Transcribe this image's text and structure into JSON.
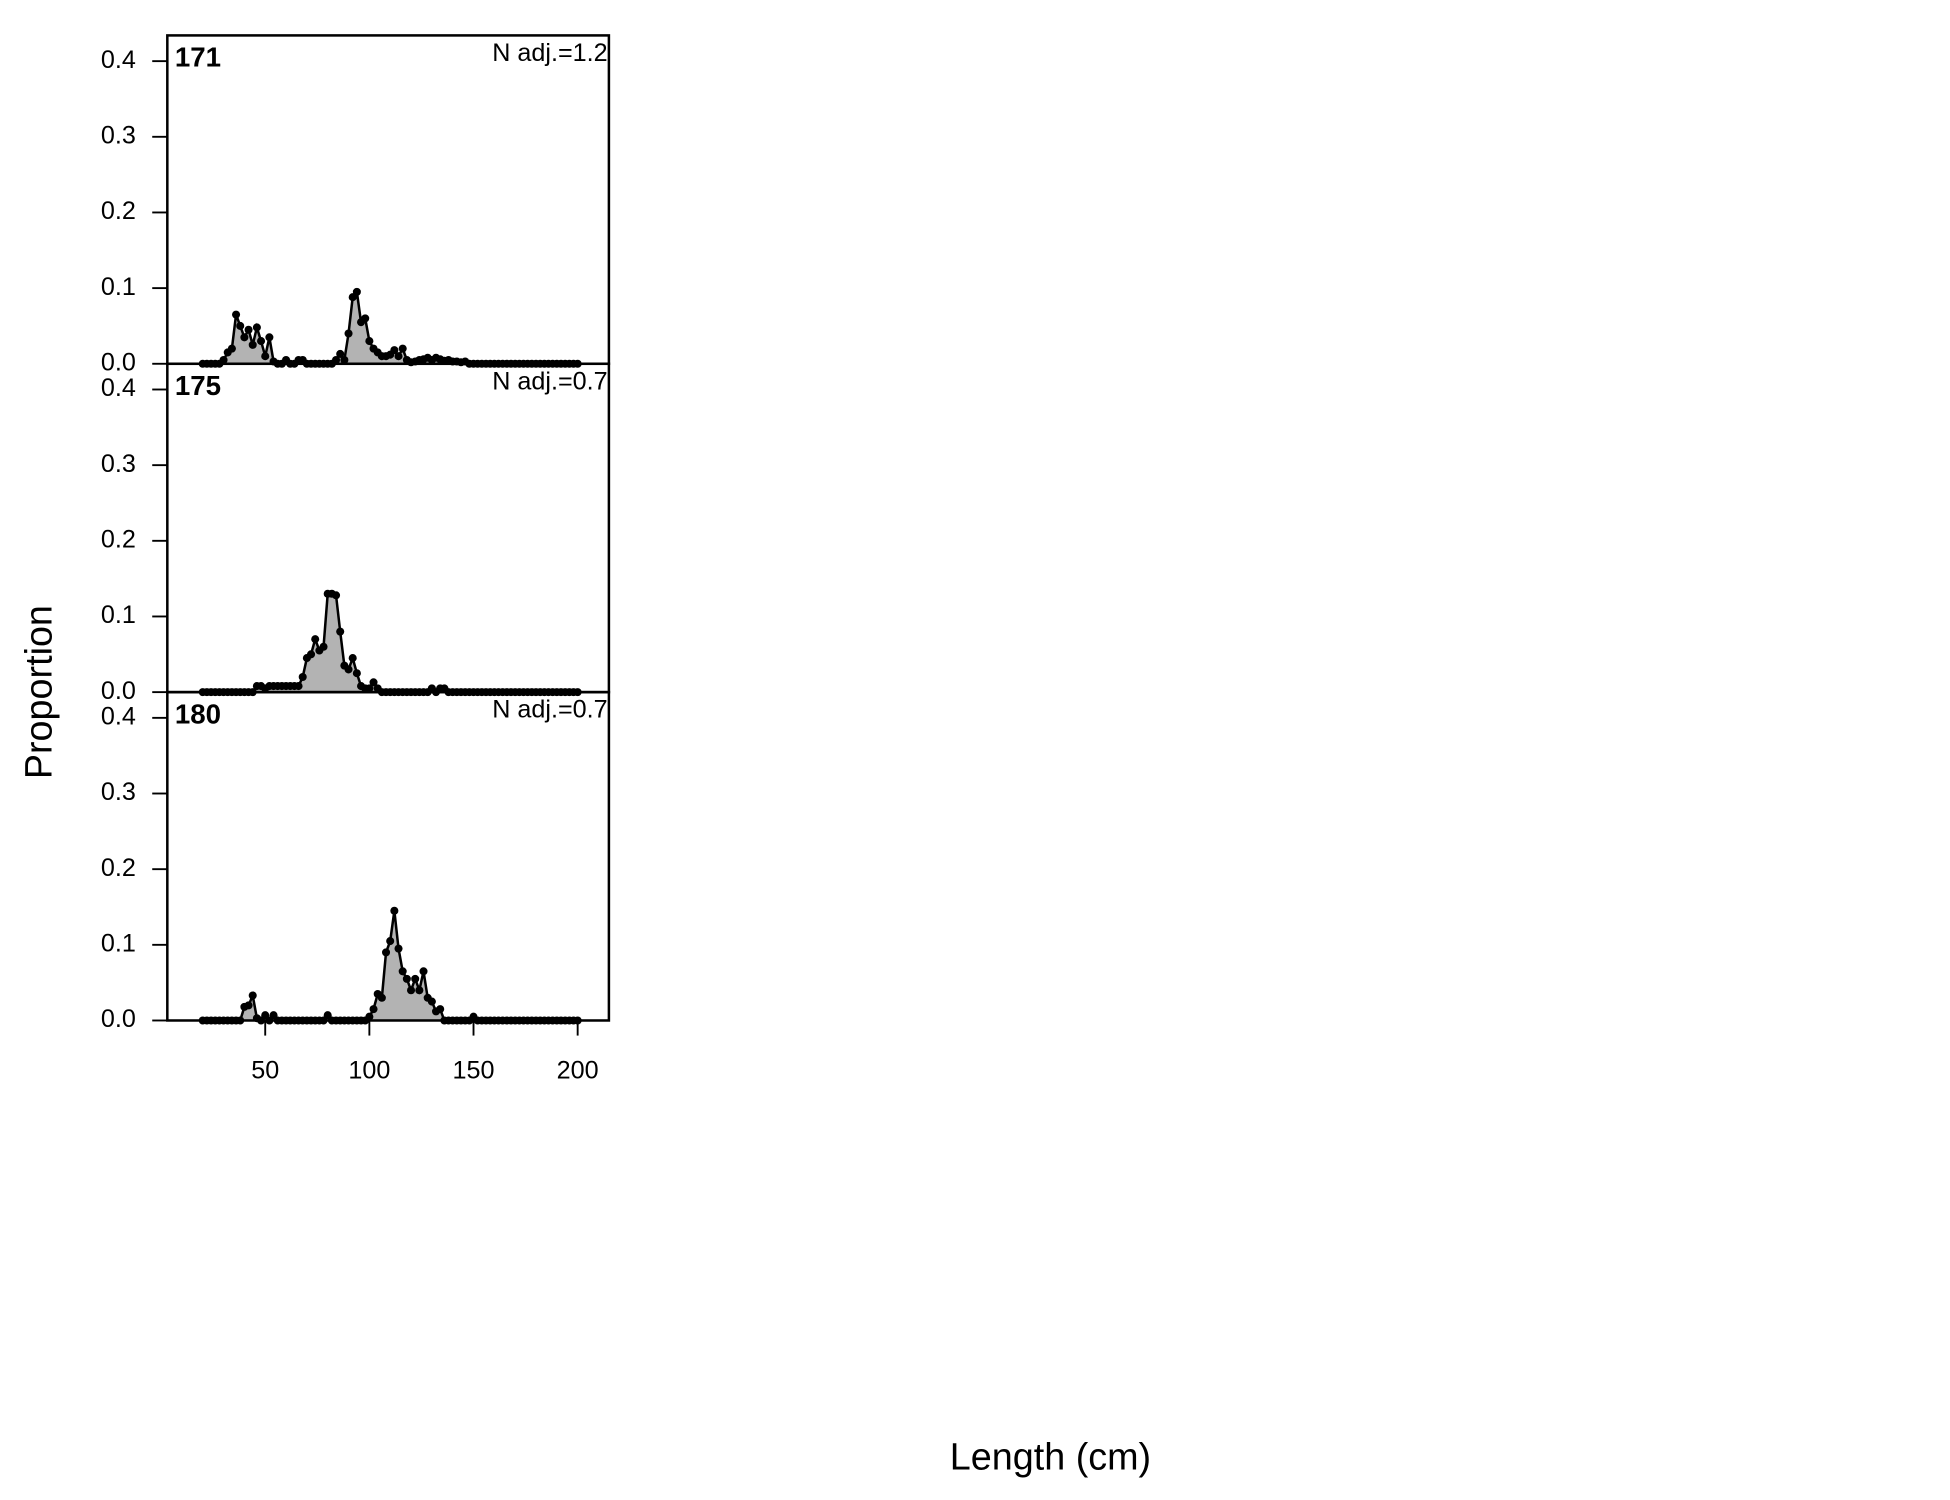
{
  "chart_data": [
    {
      "type": "area",
      "title": "171",
      "annotation": "N adj.=1.2",
      "color": "#b3b3b3",
      "x": [
        20,
        22,
        24,
        26,
        28,
        30,
        32,
        34,
        36,
        38,
        40,
        42,
        44,
        46,
        48,
        50,
        52,
        54,
        56,
        58,
        60,
        62,
        64,
        66,
        68,
        70,
        72,
        74,
        76,
        78,
        80,
        82,
        84,
        86,
        88,
        90,
        92,
        94,
        96,
        98,
        100,
        102,
        104,
        106,
        108,
        110,
        112,
        114,
        116,
        118,
        120,
        122,
        124,
        126,
        128,
        130,
        132,
        134,
        136,
        138,
        140,
        142,
        144,
        146,
        148,
        150,
        152,
        154,
        156,
        158,
        160,
        162,
        164,
        166,
        168,
        170,
        172,
        174,
        176,
        178,
        180,
        182,
        184,
        186,
        188,
        190,
        192,
        194,
        196,
        198,
        200
      ],
      "values": [
        0,
        0,
        0,
        0,
        0,
        0.005,
        0.015,
        0.02,
        0.065,
        0.05,
        0.035,
        0.045,
        0.025,
        0.048,
        0.03,
        0.01,
        0.035,
        0.003,
        0,
        0,
        0.005,
        0,
        0,
        0.005,
        0.005,
        0,
        0,
        0,
        0,
        0,
        0,
        0,
        0.005,
        0.013,
        0.005,
        0.04,
        0.088,
        0.095,
        0.055,
        0.06,
        0.03,
        0.02,
        0.015,
        0.01,
        0.01,
        0.012,
        0.018,
        0.01,
        0.02,
        0.005,
        0.002,
        0.003,
        0.005,
        0.006,
        0.008,
        0.005,
        0.008,
        0.006,
        0.004,
        0.005,
        0.003,
        0.003,
        0.002,
        0.003,
        0,
        0,
        0,
        0,
        0,
        0,
        0,
        0,
        0,
        0,
        0,
        0,
        0,
        0,
        0,
        0,
        0,
        0,
        0,
        0,
        0,
        0,
        0,
        0,
        0,
        0,
        0
      ],
      "xlim": [
        3,
        215
      ],
      "ylim": [
        0,
        0.434
      ],
      "yticks": [
        {
          "value": 0,
          "label": "0.0"
        },
        0.1,
        0.2,
        0.3,
        0.4
      ]
    },
    {
      "type": "area",
      "title": "175",
      "annotation": "N adj.=0.7",
      "color": "#b3b3b3",
      "x": [
        20,
        22,
        24,
        26,
        28,
        30,
        32,
        34,
        36,
        38,
        40,
        42,
        44,
        46,
        48,
        50,
        52,
        54,
        56,
        58,
        60,
        62,
        64,
        66,
        68,
        70,
        72,
        74,
        76,
        78,
        80,
        82,
        84,
        86,
        88,
        90,
        92,
        94,
        96,
        98,
        100,
        102,
        104,
        106,
        108,
        110,
        112,
        114,
        116,
        118,
        120,
        122,
        124,
        126,
        128,
        130,
        132,
        134,
        136,
        138,
        140,
        142,
        144,
        146,
        148,
        150,
        152,
        154,
        156,
        158,
        160,
        162,
        164,
        166,
        168,
        170,
        172,
        174,
        176,
        178,
        180,
        182,
        184,
        186,
        188,
        190,
        192,
        194,
        196,
        198,
        200
      ],
      "values": [
        0,
        0,
        0,
        0,
        0,
        0,
        0,
        0,
        0,
        0,
        0,
        0,
        0,
        0.008,
        0.008,
        0.005,
        0.008,
        0.008,
        0.008,
        0.008,
        0.008,
        0.008,
        0.008,
        0.008,
        0.02,
        0.045,
        0.05,
        0.07,
        0.055,
        0.06,
        0.13,
        0.13,
        0.128,
        0.08,
        0.035,
        0.03,
        0.045,
        0.025,
        0.008,
        0.005,
        0.005,
        0.013,
        0.005,
        0,
        0,
        0,
        0,
        0,
        0,
        0,
        0,
        0,
        0,
        0,
        0,
        0.005,
        0,
        0.005,
        0.005,
        0,
        0,
        0,
        0,
        0,
        0,
        0,
        0,
        0,
        0,
        0,
        0,
        0,
        0,
        0,
        0,
        0,
        0,
        0,
        0,
        0,
        0,
        0,
        0,
        0,
        0,
        0,
        0,
        0,
        0,
        0,
        0
      ],
      "xlim": [
        3,
        215
      ],
      "ylim": [
        0,
        0.434
      ],
      "yticks": [
        {
          "value": 0,
          "label": "0.0"
        },
        0.1,
        0.2,
        0.3,
        0.4
      ]
    },
    {
      "type": "area",
      "title": "180",
      "annotation": "N adj.=0.7",
      "color": "#b3b3b3",
      "x": [
        20,
        22,
        24,
        26,
        28,
        30,
        32,
        34,
        36,
        38,
        40,
        42,
        44,
        46,
        48,
        50,
        52,
        54,
        56,
        58,
        60,
        62,
        64,
        66,
        68,
        70,
        72,
        74,
        76,
        78,
        80,
        82,
        84,
        86,
        88,
        90,
        92,
        94,
        96,
        98,
        100,
        102,
        104,
        106,
        108,
        110,
        112,
        114,
        116,
        118,
        120,
        122,
        124,
        126,
        128,
        130,
        132,
        134,
        136,
        138,
        140,
        142,
        144,
        146,
        148,
        150,
        152,
        154,
        156,
        158,
        160,
        162,
        164,
        166,
        168,
        170,
        172,
        174,
        176,
        178,
        180,
        182,
        184,
        186,
        188,
        190,
        192,
        194,
        196,
        198,
        200
      ],
      "values": [
        0,
        0,
        0,
        0,
        0,
        0,
        0,
        0,
        0,
        0,
        0.018,
        0.02,
        0.033,
        0.003,
        0,
        0.007,
        0,
        0.007,
        0,
        0,
        0,
        0,
        0,
        0,
        0,
        0,
        0,
        0,
        0,
        0,
        0.007,
        0,
        0,
        0,
        0,
        0,
        0,
        0,
        0,
        0,
        0.005,
        0.015,
        0.035,
        0.03,
        0.09,
        0.105,
        0.145,
        0.095,
        0.065,
        0.055,
        0.04,
        0.055,
        0.04,
        0.065,
        0.03,
        0.025,
        0.012,
        0.015,
        0,
        0,
        0,
        0,
        0,
        0,
        0,
        0.005,
        0,
        0,
        0,
        0,
        0,
        0,
        0,
        0,
        0,
        0,
        0,
        0,
        0,
        0,
        0,
        0,
        0,
        0,
        0,
        0,
        0,
        0,
        0,
        0,
        0
      ],
      "xlim": [
        3,
        215
      ],
      "ylim": [
        0,
        0.434
      ],
      "yticks": [
        {
          "value": 0,
          "label": "0.0"
        },
        0.1,
        0.2,
        0.3,
        0.4
      ],
      "xticks": [
        50,
        100,
        150,
        200
      ]
    }
  ],
  "xlabel": "Length (cm)",
  "ylabel": "Proportion"
}
